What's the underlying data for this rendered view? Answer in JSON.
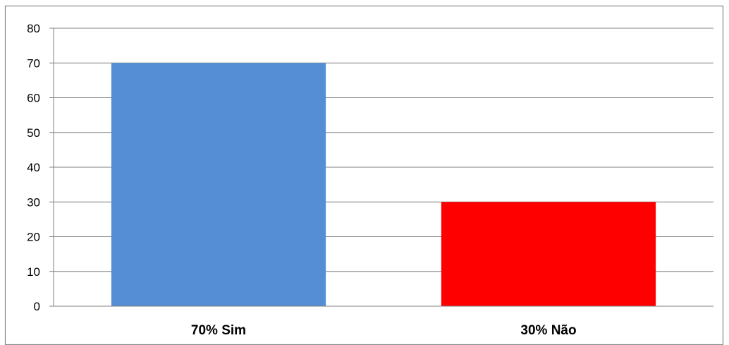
{
  "chart_data": {
    "type": "bar",
    "categories": [
      "70% Sim",
      "30% Não"
    ],
    "values": [
      70,
      30
    ],
    "colors": [
      "#558ed5",
      "#ff0000"
    ],
    "ylim": [
      0,
      80
    ],
    "yticks": [
      0,
      10,
      20,
      30,
      40,
      50,
      60,
      70,
      80
    ],
    "grid": true,
    "gridline_color": "#808080",
    "legend": false
  }
}
